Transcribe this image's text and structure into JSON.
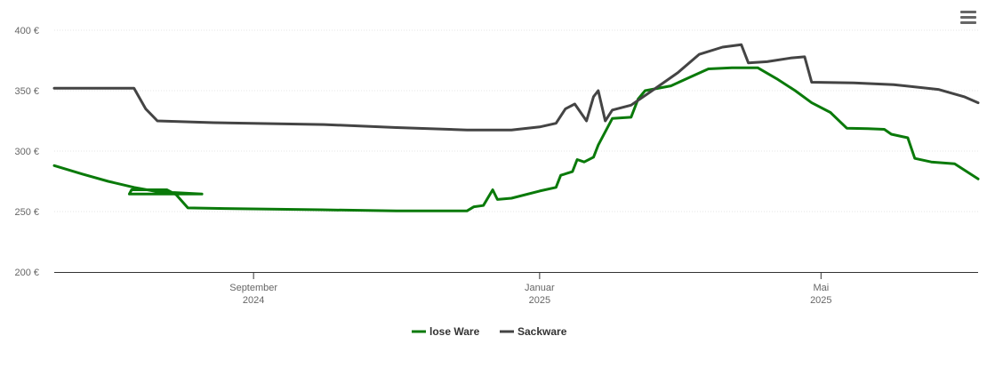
{
  "menu": {
    "icon": "hamburger-menu-icon"
  },
  "chart_data": {
    "type": "line",
    "title": "",
    "xlabel": "",
    "ylabel": "",
    "ylim": [
      200,
      400
    ],
    "xlim": [
      "2024-06-08",
      "2025-07-07"
    ],
    "yticks": [
      {
        "value": 200,
        "label": "200 €"
      },
      {
        "value": 250,
        "label": "250 €"
      },
      {
        "value": 300,
        "label": "300 €"
      },
      {
        "value": 350,
        "label": "350 €"
      },
      {
        "value": 400,
        "label": "400 €"
      }
    ],
    "xticks": [
      {
        "date": "2024-09-01",
        "month": "September",
        "year": "2024"
      },
      {
        "date": "2025-01-01",
        "month": "Januar",
        "year": "2025"
      },
      {
        "date": "2025-05-01",
        "month": "Mai",
        "year": "2025"
      }
    ],
    "grid": true,
    "legend_position": "bottom",
    "series": [
      {
        "name": "lose Ware",
        "color": "#0a7a0a",
        "points": [
          [
            "2024-06-08",
            288
          ],
          [
            "2024-06-20",
            281
          ],
          [
            "2024-07-01",
            275
          ],
          [
            "2024-07-12",
            270
          ],
          [
            "2024-07-22",
            266.5
          ],
          [
            "2024-08-10",
            264.5
          ],
          [
            "2024-07-10",
            264.5
          ],
          [
            "2024-07-11",
            268
          ],
          [
            "2024-07-20",
            268
          ],
          [
            "2024-07-26",
            268
          ],
          [
            "2024-07-30",
            264
          ],
          [
            "2024-08-04",
            253
          ],
          [
            "2024-08-20",
            252.5
          ],
          [
            "2024-09-30",
            251.5
          ],
          [
            "2024-11-01",
            250.5
          ],
          [
            "2024-11-30",
            250.5
          ],
          [
            "2024-12-01",
            250.5
          ],
          [
            "2024-12-04",
            254
          ],
          [
            "2024-12-08",
            255
          ],
          [
            "2024-12-12",
            268
          ],
          [
            "2024-12-14",
            260
          ],
          [
            "2024-12-20",
            261
          ],
          [
            "2025-01-01",
            267
          ],
          [
            "2025-01-08",
            270
          ],
          [
            "2025-01-10",
            280
          ],
          [
            "2025-01-15",
            283
          ],
          [
            "2025-01-17",
            293
          ],
          [
            "2025-01-20",
            291
          ],
          [
            "2025-01-24",
            295
          ],
          [
            "2025-01-26",
            305
          ],
          [
            "2025-02-01",
            327
          ],
          [
            "2025-02-09",
            328
          ],
          [
            "2025-02-12",
            343
          ],
          [
            "2025-02-15",
            350
          ],
          [
            "2025-02-26",
            354
          ],
          [
            "2025-03-06",
            361
          ],
          [
            "2025-03-14",
            368
          ],
          [
            "2025-03-24",
            369
          ],
          [
            "2025-04-04",
            369
          ],
          [
            "2025-04-12",
            360
          ],
          [
            "2025-04-20",
            350
          ],
          [
            "2025-04-27",
            340
          ],
          [
            "2025-05-05",
            332
          ],
          [
            "2025-05-12",
            319
          ],
          [
            "2025-05-21",
            318.5
          ],
          [
            "2025-05-28",
            318
          ],
          [
            "2025-05-31",
            314
          ],
          [
            "2025-06-07",
            311
          ],
          [
            "2025-06-10",
            294
          ],
          [
            "2025-06-17",
            291
          ],
          [
            "2025-06-27",
            289.5
          ],
          [
            "2025-07-07",
            277
          ]
        ]
      },
      {
        "name": "Sackware",
        "color": "#444444",
        "points": [
          [
            "2024-06-08",
            352
          ],
          [
            "2024-07-12",
            352
          ],
          [
            "2024-07-17",
            335
          ],
          [
            "2024-07-22",
            325
          ],
          [
            "2024-08-15",
            323.5
          ],
          [
            "2024-10-01",
            322
          ],
          [
            "2024-11-01",
            319.5
          ],
          [
            "2024-12-01",
            317.5
          ],
          [
            "2024-12-20",
            317.5
          ],
          [
            "2025-01-01",
            320
          ],
          [
            "2025-01-08",
            323
          ],
          [
            "2025-01-12",
            335
          ],
          [
            "2025-01-16",
            339
          ],
          [
            "2025-01-21",
            325
          ],
          [
            "2025-01-24",
            345
          ],
          [
            "2025-01-26",
            350
          ],
          [
            "2025-01-29",
            325
          ],
          [
            "2025-02-01",
            334
          ],
          [
            "2025-02-09",
            338
          ],
          [
            "2025-02-18",
            350
          ],
          [
            "2025-03-01",
            365
          ],
          [
            "2025-03-10",
            380
          ],
          [
            "2025-03-20",
            386
          ],
          [
            "2025-03-28",
            388
          ],
          [
            "2025-03-31",
            373
          ],
          [
            "2025-04-08",
            374
          ],
          [
            "2025-04-18",
            377
          ],
          [
            "2025-04-24",
            378
          ],
          [
            "2025-04-27",
            357
          ],
          [
            "2025-05-15",
            356.5
          ],
          [
            "2025-06-01",
            355
          ],
          [
            "2025-06-20",
            351
          ],
          [
            "2025-07-01",
            345
          ],
          [
            "2025-07-07",
            340
          ]
        ]
      }
    ]
  }
}
